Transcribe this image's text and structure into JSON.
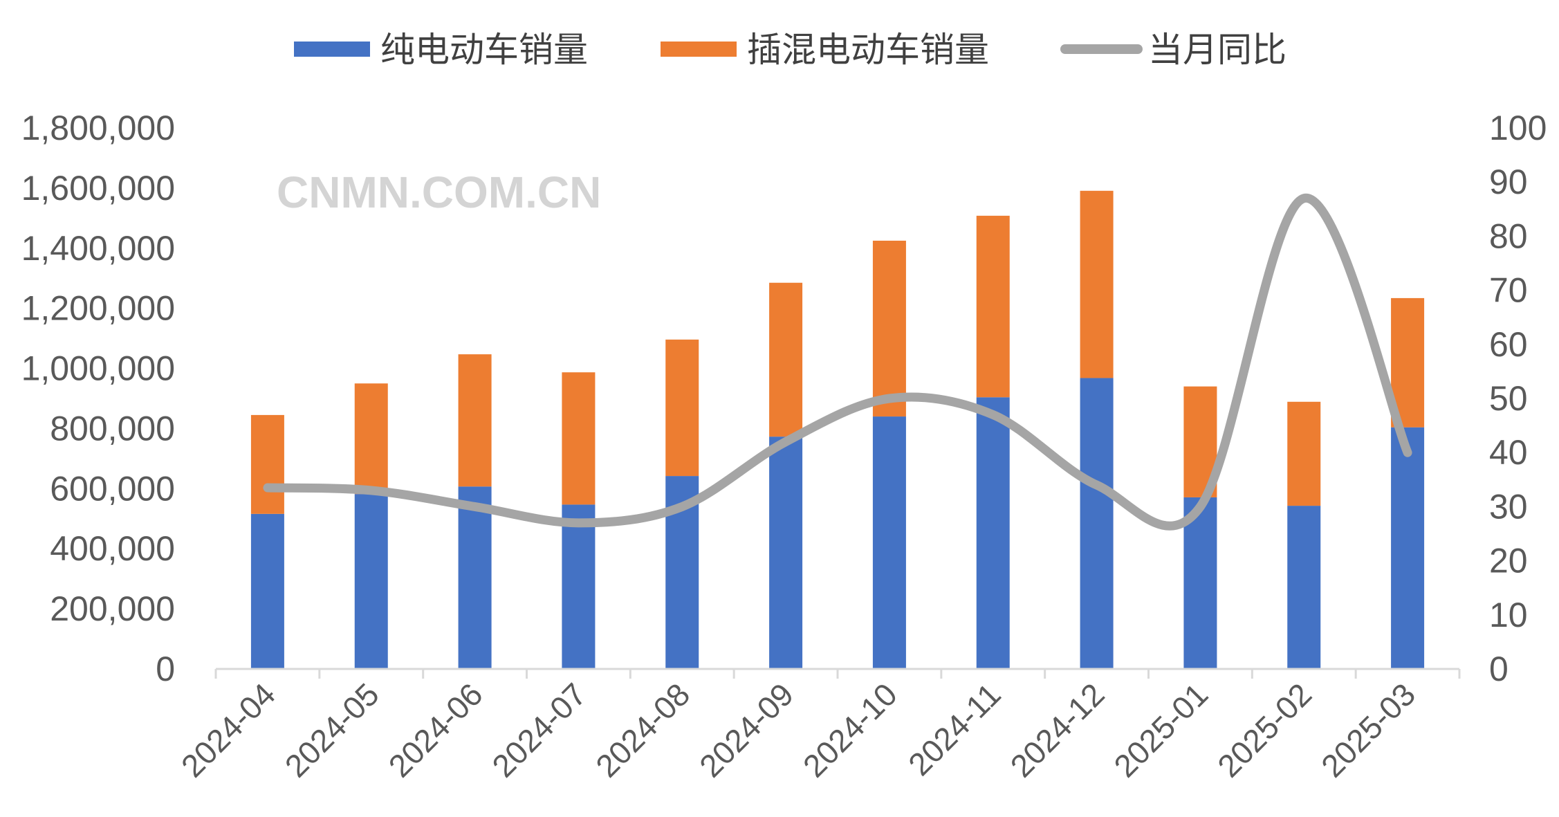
{
  "chart_data": {
    "type": "bar",
    "stacked": true,
    "categories": [
      "2024-04",
      "2024-05",
      "2024-06",
      "2024-07",
      "2024-08",
      "2024-09",
      "2024-10",
      "2024-11",
      "2024-12",
      "2025-01",
      "2025-02",
      "2025-03"
    ],
    "series": [
      {
        "name": "纯电动车销量",
        "type": "bar",
        "axis": "left",
        "color": "#4472C4",
        "values": [
          516000,
          582000,
          607000,
          547000,
          642000,
          773000,
          840000,
          904000,
          968000,
          571000,
          543000,
          804000
        ]
      },
      {
        "name": "插混电动车销量",
        "type": "bar",
        "axis": "left",
        "color": "#ED7D31",
        "values": [
          329000,
          368000,
          440000,
          440000,
          454000,
          512000,
          585000,
          604000,
          623000,
          369000,
          346000,
          430000
        ]
      },
      {
        "name": "当月同比",
        "type": "line",
        "smooth": true,
        "axis": "right",
        "color": "#A5A5A5",
        "values": [
          33.5,
          33,
          30,
          27,
          30,
          42,
          50,
          47,
          34,
          30,
          87,
          40
        ]
      }
    ],
    "left_axis": {
      "min": 0,
      "max": 1800000,
      "step": 200000,
      "tick_labels": [
        "0",
        "200,000",
        "400,000",
        "600,000",
        "800,000",
        "1,000,000",
        "1,200,000",
        "1,400,000",
        "1,600,000",
        "1,800,000"
      ]
    },
    "right_axis": {
      "min": 0,
      "max": 100,
      "step": 10,
      "tick_labels": [
        "0",
        "10",
        "20",
        "30",
        "40",
        "50",
        "60",
        "70",
        "80",
        "90",
        "100"
      ]
    },
    "legend_position": "top",
    "grid": false,
    "watermark": "CNMN.COM.CN"
  }
}
